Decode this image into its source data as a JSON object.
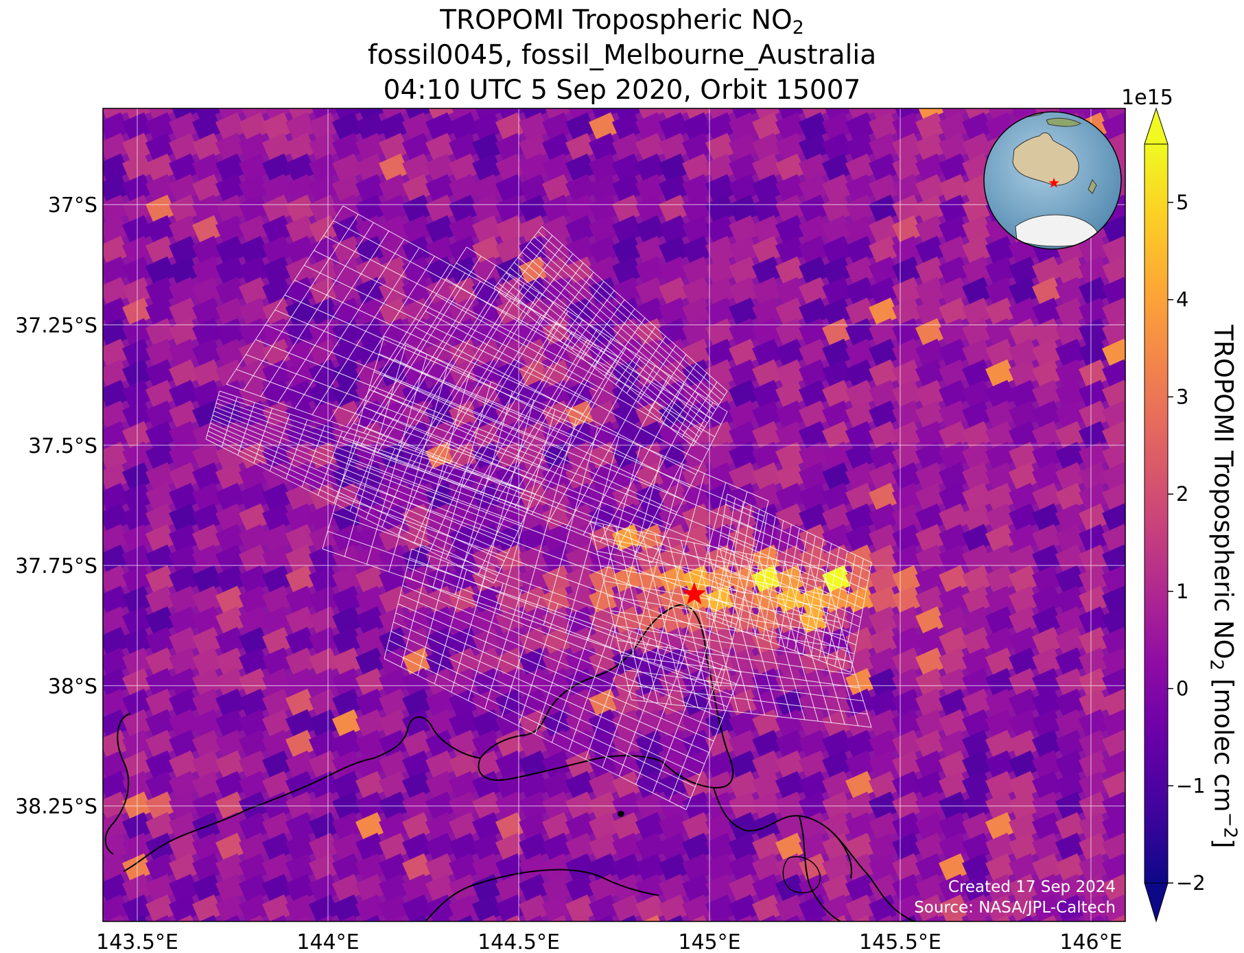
{
  "title": {
    "line1_prefix": "TROPOMI Tropospheric NO",
    "line1_sub": "2",
    "line2": "fossil0045, fossil_Melbourne_Australia",
    "line3": "04:10 UTC 5 Sep 2020, Orbit 15007"
  },
  "map": {
    "lon_range": [
      143.41,
      146.09
    ],
    "lat_range": [
      -38.49,
      -36.8
    ],
    "lon_ticks": [
      143.5,
      144.0,
      144.5,
      145.0,
      145.5,
      146.0
    ],
    "lon_tick_labels": [
      "143.5°E",
      "144°E",
      "144.5°E",
      "145°E",
      "145.5°E",
      "146°E"
    ],
    "lat_ticks": [
      -37.0,
      -37.25,
      -37.5,
      -37.75,
      -38.0,
      -38.25
    ],
    "lat_tick_labels": [
      "37°S",
      "37.25°S",
      "37.5°S",
      "37.75°S",
      "38°S",
      "38.25°S"
    ],
    "gridlines": true,
    "target_marker": {
      "symbol": "star",
      "color": "#ff0000",
      "lon": 144.96,
      "lat": -37.81
    }
  },
  "colorbar": {
    "cmap": "plasma",
    "range": [
      -2,
      5.6
    ],
    "extend": "both",
    "ticks": [
      -2,
      -1,
      0,
      1,
      2,
      3,
      4,
      5
    ],
    "tick_labels": [
      "−2",
      "−1",
      "0",
      "1",
      "2",
      "3",
      "4",
      "5"
    ],
    "scale_label": "1e15",
    "label_prefix": "TROPOMI Tropospheric NO",
    "label_sub": "2",
    "label_middle": " [molec cm",
    "label_sup": "−2",
    "label_suffix": "]"
  },
  "inset": {
    "type": "globe",
    "marker_color": "#ff0000"
  },
  "credit": {
    "created": "Created 17 Sep 2024",
    "source": "Source: NASA/JPL-Caltech"
  }
}
